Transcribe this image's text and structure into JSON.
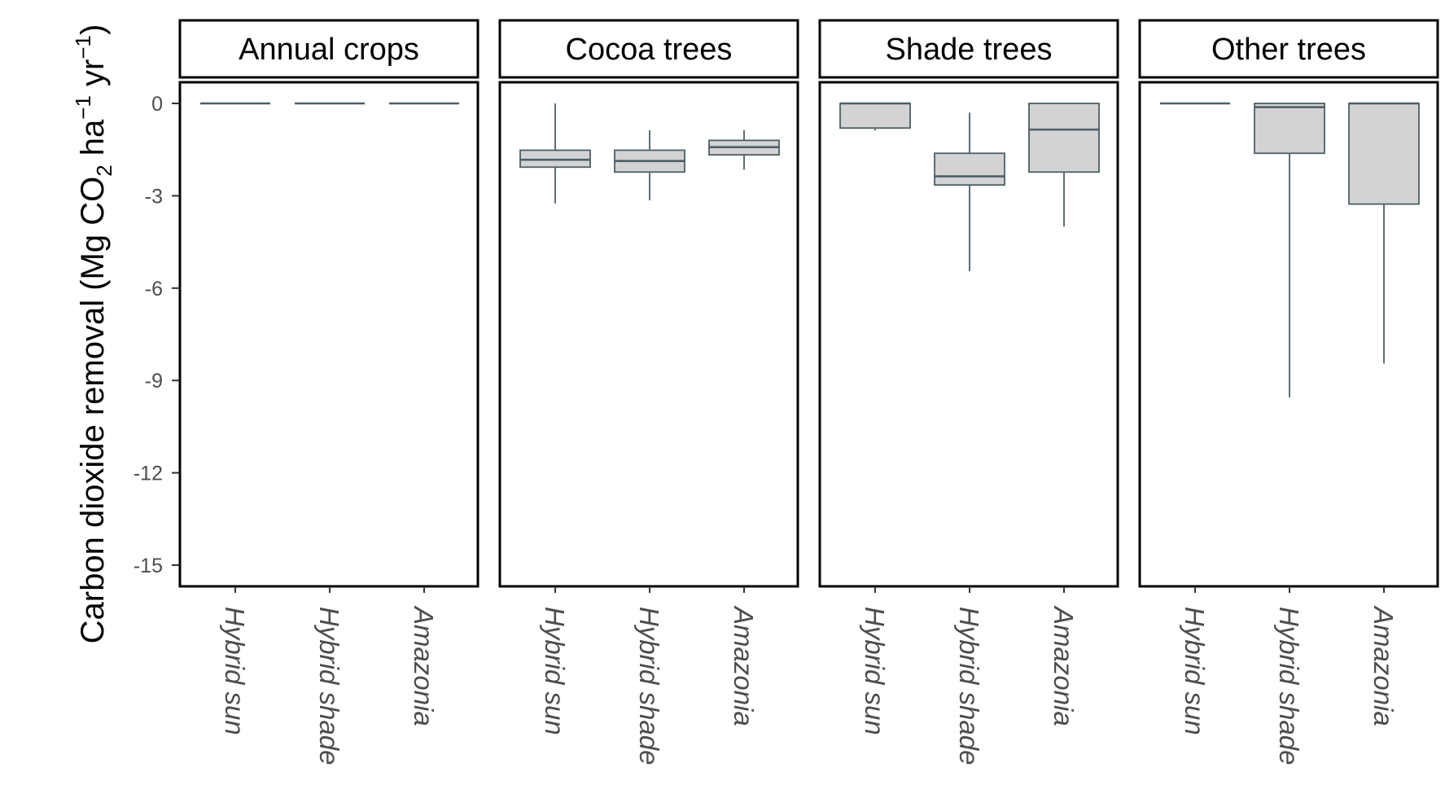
{
  "chart_data": {
    "type": "boxplot",
    "ylabel": {
      "main": "Carbon dioxide removal (Mg  CO",
      "sub": "2",
      "ha": " ha",
      "sup1": "−1",
      "yr": " yr",
      "sup2": "−1",
      "close": ")"
    },
    "ylim": [
      -15.5,
      0.5
    ],
    "yticks": [
      0,
      -3,
      -6,
      -9,
      -12,
      -15
    ],
    "ytick_labels": [
      "0",
      "-3",
      "-6",
      "-9",
      "-12",
      "-15"
    ],
    "categories": [
      "Hybrid sun",
      "Hybrid shade",
      "Amazonia"
    ],
    "grid": false,
    "colors": {
      "box_fill": "#d3d3d3",
      "box_stroke": "#4d5f66",
      "panel_border": "#000000"
    },
    "facets": [
      {
        "name": "Annual crops",
        "boxes": [
          {
            "category": "Hybrid sun",
            "min": 0,
            "q1": 0,
            "median": 0,
            "q3": 0,
            "max": 0
          },
          {
            "category": "Hybrid shade",
            "min": 0,
            "q1": 0,
            "median": 0,
            "q3": 0,
            "max": 0
          },
          {
            "category": "Amazonia",
            "min": 0,
            "q1": 0,
            "median": 0,
            "q3": 0,
            "max": 0
          }
        ]
      },
      {
        "name": "Cocoa trees",
        "boxes": [
          {
            "category": "Hybrid sun",
            "min": -3.25,
            "q1": -2.07,
            "median": -1.83,
            "q3": -1.52,
            "max": 0
          },
          {
            "category": "Hybrid shade",
            "min": -3.15,
            "q1": -2.23,
            "median": -1.87,
            "q3": -1.52,
            "max": -0.87
          },
          {
            "category": "Amazonia",
            "min": -2.15,
            "q1": -1.67,
            "median": -1.42,
            "q3": -1.2,
            "max": -0.87
          }
        ]
      },
      {
        "name": "Shade trees",
        "boxes": [
          {
            "category": "Hybrid sun",
            "min": -0.88,
            "q1": -0.8,
            "median": 0,
            "q3": 0,
            "max": 0
          },
          {
            "category": "Hybrid shade",
            "min": -5.45,
            "q1": -2.65,
            "median": -2.37,
            "q3": -1.62,
            "max": -0.3
          },
          {
            "category": "Amazonia",
            "min": -4,
            "q1": -2.23,
            "median": -0.85,
            "q3": 0,
            "max": 0
          }
        ]
      },
      {
        "name": "Other trees",
        "boxes": [
          {
            "category": "Hybrid sun",
            "min": 0,
            "q1": 0,
            "median": 0,
            "q3": 0,
            "max": 0
          },
          {
            "category": "Hybrid shade",
            "min": -9.55,
            "q1": -1.62,
            "median": -0.12,
            "q3": 0,
            "max": 0
          },
          {
            "category": "Amazonia",
            "min": -8.45,
            "q1": -3.27,
            "median": 0,
            "q3": 0,
            "max": 0
          }
        ]
      }
    ]
  }
}
